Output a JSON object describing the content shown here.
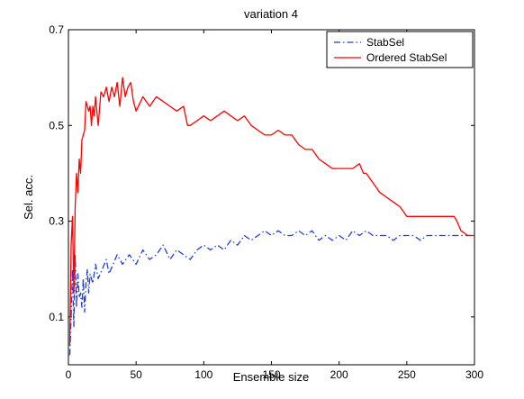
{
  "chart_data": {
    "type": "line",
    "title": "variation 4",
    "xlabel": "Ensemble size",
    "ylabel": "Sel. acc.",
    "xlim": [
      0,
      300
    ],
    "ylim": [
      0,
      0.7
    ],
    "xticks": [
      0,
      50,
      100,
      150,
      200,
      250,
      300
    ],
    "yticks": [
      0.1,
      0.3,
      0.5,
      0.7
    ],
    "legend_placement": "top-right",
    "grid": false,
    "series": [
      {
        "name": "StabSel",
        "color": "#1f3fd6",
        "style": "dash-dot",
        "x": [
          1,
          2,
          3,
          4,
          5,
          6,
          7,
          8,
          9,
          10,
          11,
          12,
          13,
          14,
          15,
          16,
          18,
          20,
          22,
          25,
          28,
          30,
          33,
          36,
          40,
          45,
          50,
          55,
          60,
          65,
          70,
          75,
          80,
          85,
          90,
          95,
          100,
          105,
          110,
          115,
          120,
          125,
          130,
          135,
          140,
          145,
          150,
          155,
          160,
          165,
          170,
          175,
          180,
          185,
          190,
          195,
          200,
          205,
          210,
          215,
          220,
          225,
          230,
          235,
          240,
          245,
          250,
          255,
          260,
          265,
          270,
          275,
          280,
          285,
          290,
          295,
          300
        ],
        "values": [
          0.02,
          0.1,
          0.2,
          0.08,
          0.23,
          0.12,
          0.19,
          0.14,
          0.15,
          0.12,
          0.18,
          0.11,
          0.17,
          0.2,
          0.15,
          0.19,
          0.17,
          0.21,
          0.18,
          0.2,
          0.22,
          0.19,
          0.21,
          0.23,
          0.21,
          0.23,
          0.21,
          0.24,
          0.22,
          0.23,
          0.25,
          0.22,
          0.24,
          0.23,
          0.22,
          0.24,
          0.25,
          0.24,
          0.25,
          0.24,
          0.26,
          0.25,
          0.27,
          0.26,
          0.27,
          0.28,
          0.27,
          0.28,
          0.27,
          0.27,
          0.28,
          0.27,
          0.28,
          0.26,
          0.27,
          0.26,
          0.27,
          0.26,
          0.28,
          0.27,
          0.28,
          0.27,
          0.27,
          0.27,
          0.26,
          0.27,
          0.27,
          0.27,
          0.26,
          0.27,
          0.27,
          0.27,
          0.27,
          0.27,
          0.27,
          0.27,
          0.27
        ]
      },
      {
        "name": "Ordered StabSel",
        "color": "#ff0000",
        "style": "solid",
        "x": [
          1,
          2,
          3,
          4,
          5,
          6,
          7,
          8,
          9,
          10,
          11,
          12,
          13,
          14,
          15,
          16,
          17,
          18,
          19,
          20,
          22,
          24,
          26,
          28,
          30,
          32,
          34,
          36,
          38,
          40,
          42,
          44,
          46,
          48,
          50,
          55,
          60,
          65,
          70,
          75,
          80,
          85,
          88,
          90,
          95,
          100,
          105,
          110,
          115,
          120,
          125,
          130,
          135,
          140,
          145,
          150,
          155,
          160,
          165,
          170,
          175,
          180,
          185,
          190,
          195,
          200,
          205,
          210,
          215,
          218,
          220,
          225,
          230,
          235,
          240,
          245,
          250,
          255,
          260,
          265,
          270,
          275,
          280,
          285,
          287,
          290,
          295,
          300
        ],
        "values": [
          0.04,
          0.25,
          0.31,
          0.15,
          0.33,
          0.4,
          0.36,
          0.43,
          0.4,
          0.47,
          0.48,
          0.49,
          0.55,
          0.54,
          0.53,
          0.54,
          0.5,
          0.54,
          0.52,
          0.56,
          0.5,
          0.57,
          0.56,
          0.58,
          0.55,
          0.58,
          0.56,
          0.59,
          0.54,
          0.6,
          0.56,
          0.58,
          0.59,
          0.55,
          0.53,
          0.56,
          0.54,
          0.56,
          0.55,
          0.54,
          0.53,
          0.54,
          0.5,
          0.5,
          0.51,
          0.52,
          0.51,
          0.52,
          0.53,
          0.52,
          0.51,
          0.52,
          0.5,
          0.49,
          0.48,
          0.48,
          0.49,
          0.48,
          0.48,
          0.46,
          0.45,
          0.45,
          0.43,
          0.42,
          0.41,
          0.41,
          0.41,
          0.41,
          0.42,
          0.4,
          0.4,
          0.38,
          0.36,
          0.35,
          0.34,
          0.33,
          0.31,
          0.31,
          0.31,
          0.31,
          0.31,
          0.31,
          0.31,
          0.31,
          0.3,
          0.28,
          0.27,
          0.27
        ]
      }
    ]
  }
}
